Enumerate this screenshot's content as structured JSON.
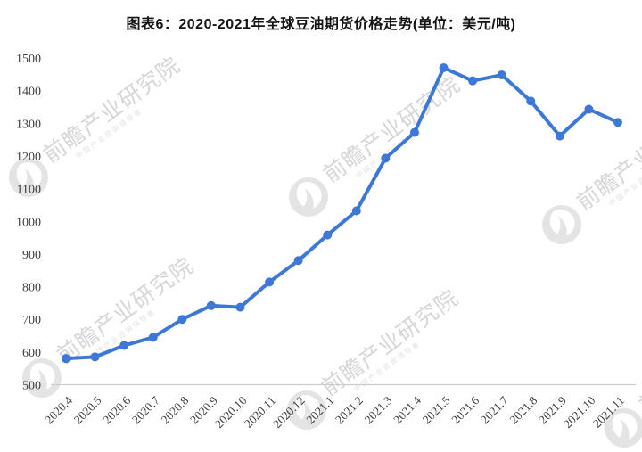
{
  "title": "图表6：2020-2021年全球豆油期货价格走势(单位：美元/吨)",
  "watermark": {
    "logo_icon": "qianzhan-bird-icon",
    "text": "前瞻产业研究院",
    "subtext": "中国产业咨询领导者"
  },
  "colors": {
    "line": "#3D78D8",
    "axis_text": "#3F3F3F",
    "axis_line": "#CCCCCC",
    "title_text": "#141414",
    "watermark_text": "#D6D6D6",
    "watermark_logo": "#E4E4E4"
  },
  "chart_data": {
    "type": "line",
    "title": "图表6：2020-2021年全球豆油期货价格走势",
    "unit": "美元/吨",
    "x": [
      "2020.4",
      "2020.5",
      "2020.6",
      "2020.7",
      "2020.8",
      "2020.9",
      "2020.10",
      "2020.11",
      "2020.12",
      "2021.1",
      "2021.2",
      "2021.3",
      "2021.4",
      "2021.5",
      "2021.6",
      "2021.7",
      "2021.8",
      "2021.9",
      "2021.10",
      "2021.11"
    ],
    "values": [
      580,
      585,
      620,
      645,
      700,
      742,
      737,
      814,
      880,
      958,
      1032,
      1193,
      1272,
      1470,
      1430,
      1448,
      1368,
      1261,
      1343,
      1303
    ],
    "ylim": [
      500,
      1500
    ],
    "yticks": [
      500,
      600,
      700,
      800,
      900,
      1000,
      1100,
      1200,
      1300,
      1400,
      1500
    ],
    "grid": false,
    "legend": false,
    "marker": "circle"
  }
}
